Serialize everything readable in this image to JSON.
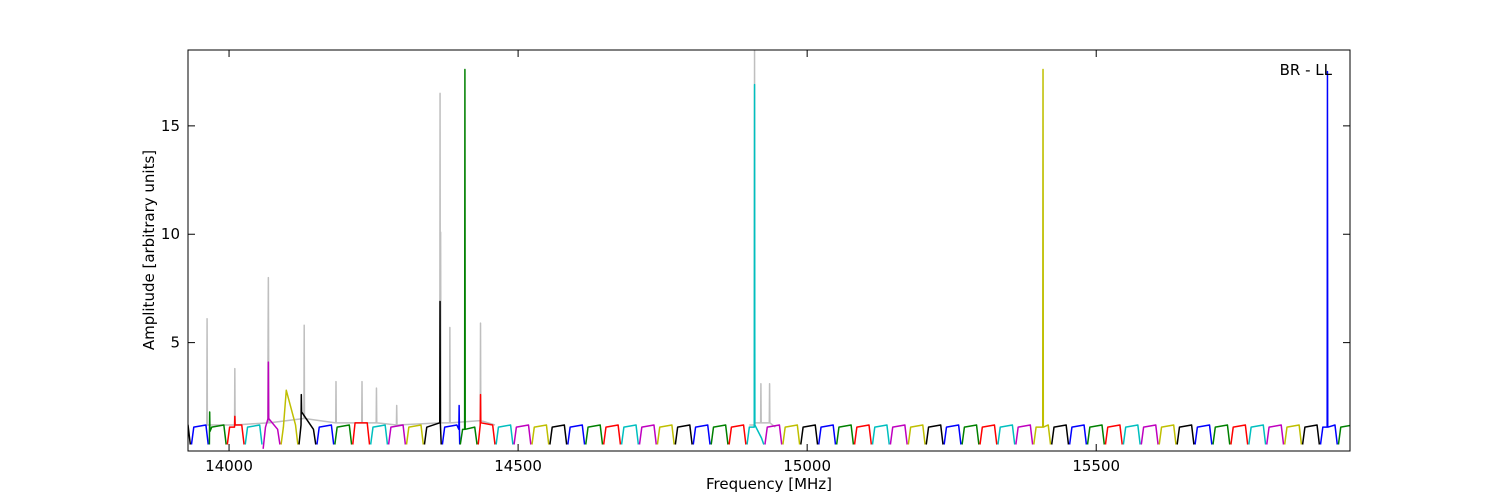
{
  "chart_data": {
    "type": "line",
    "xlabel": "Frequency [MHz]",
    "ylabel": "Amplitude [arbitrary units]",
    "annotation": "BR - LL",
    "xlim": [
      13929,
      15939
    ],
    "xticks": [
      14000,
      14500,
      15000,
      15500
    ],
    "ylim": [
      0,
      18.5
    ],
    "yticks": [
      5,
      10,
      15
    ],
    "series": [
      {
        "color": "#bfbfbf",
        "x": [
          13960,
          13961.5,
          13962,
          13962.5,
          14009.5,
          14010,
          14010.5,
          14067,
          14067.5,
          14068,
          14068.5,
          14069,
          14129.5,
          14130,
          14130.5,
          14184.5,
          14185,
          14185.5,
          14229.5,
          14230,
          14230.5,
          14254.5,
          14255,
          14255.5,
          14289.5,
          14290,
          14290.5,
          14364.5,
          14365,
          14365.5,
          14366,
          14366.5,
          14381.5,
          14382,
          14382.5,
          14434.5,
          14435,
          14435.5,
          14460,
          null,
          14900,
          14908.5,
          14909,
          14909.5,
          14919.5,
          14920,
          14920.5,
          14934.5,
          14935,
          14935.5,
          14945
        ],
        "values": [
          1.1,
          1.2,
          6.1,
          1.2,
          1.2,
          3.8,
          1.2,
          1.3,
          5.3,
          8.0,
          4.0,
          1.3,
          1.5,
          5.8,
          1.5,
          1.3,
          3.2,
          1.3,
          1.3,
          3.2,
          1.3,
          1.3,
          2.9,
          1.3,
          1.2,
          2.1,
          1.2,
          1.3,
          16.5,
          3.0,
          10.1,
          1.3,
          1.3,
          5.7,
          1.3,
          1.4,
          5.9,
          1.4,
          1.2,
          null,
          1.2,
          1.2,
          18.5,
          1.3,
          1.3,
          3.1,
          1.3,
          1.3,
          3.1,
          1.3,
          1.1
        ]
      },
      {
        "color": "#0000ff",
        "x": [
          13935,
          13939,
          13960,
          13964,
          null,
          14152,
          14156,
          14177,
          14181,
          null,
          14369,
          14373,
          14394,
          14397.5,
          14398,
          14398.5,
          14399,
          null,
          14586,
          14590,
          14611,
          14615,
          null,
          14803,
          14807,
          14828,
          14832,
          null,
          15020,
          15024,
          15045,
          15049,
          null,
          15237,
          15241,
          15262,
          15266,
          null,
          15454,
          15458,
          15479,
          15483,
          null,
          15671,
          15675,
          15696,
          15700,
          null,
          15888,
          15892,
          15899.5,
          15900,
          15900.5,
          15913,
          15917
        ],
        "values": [
          0.3,
          1.1,
          1.2,
          0.3,
          null,
          0.3,
          1.1,
          1.2,
          0.3,
          null,
          0.3,
          1.1,
          1.2,
          1.0,
          2.1,
          1.0,
          0.3,
          null,
          0.3,
          1.1,
          1.2,
          0.3,
          null,
          0.3,
          1.1,
          1.2,
          0.3,
          null,
          0.3,
          1.1,
          1.2,
          0.3,
          null,
          0.3,
          1.1,
          1.2,
          0.3,
          null,
          0.3,
          1.1,
          1.2,
          0.3,
          null,
          0.3,
          1.1,
          1.2,
          0.3,
          null,
          0.3,
          1.1,
          1.1,
          17.5,
          1.1,
          1.2,
          0.3
        ]
      },
      {
        "color": "#008000",
        "x": [
          13966,
          13966.5,
          13967,
          13970,
          13991,
          13995,
          null,
          14183,
          14187,
          14208,
          14212,
          null,
          14400,
          14404,
          14407.5,
          14408,
          14408.5,
          14425,
          14429,
          null,
          14617,
          14621,
          14642,
          14646,
          null,
          14834,
          14838,
          14859,
          14863,
          null,
          15051,
          15055,
          15076,
          15080,
          null,
          15268,
          15272,
          15293,
          15297,
          null,
          15485,
          15489,
          15510,
          15514,
          null,
          15702,
          15706,
          15727,
          15731,
          null,
          15919,
          15923,
          15944,
          15948
        ],
        "values": [
          0.3,
          1.8,
          0.9,
          1.1,
          1.2,
          0.3,
          null,
          0.3,
          1.1,
          1.2,
          0.3,
          null,
          0.3,
          1.0,
          1.0,
          17.6,
          1.0,
          1.1,
          0.3,
          null,
          0.3,
          1.1,
          1.2,
          0.3,
          null,
          0.3,
          1.1,
          1.2,
          0.3,
          null,
          0.3,
          1.1,
          1.2,
          0.3,
          null,
          0.3,
          1.1,
          1.2,
          0.3,
          null,
          0.3,
          1.1,
          1.2,
          0.3,
          null,
          0.3,
          1.1,
          1.2,
          0.3,
          null,
          0.3,
          1.1,
          1.2,
          0.3
        ]
      },
      {
        "color": "#ff0000",
        "x": [
          13997,
          14001,
          14009.5,
          14010,
          14010.5,
          14022,
          14026,
          null,
          14214,
          14218,
          14239,
          14243,
          null,
          14431,
          14434.5,
          14435,
          14435.5,
          14456,
          14460,
          null,
          14648,
          14652,
          14673,
          14677,
          null,
          14865,
          14869,
          14890,
          14894,
          null,
          15082,
          15086,
          15107,
          15111,
          null,
          15299,
          15303,
          15324,
          15328,
          null,
          15516,
          15520,
          15541,
          15545,
          null,
          15733,
          15737,
          15758,
          15762
        ],
        "values": [
          0.3,
          1.1,
          1.1,
          1.6,
          1.2,
          1.2,
          0.3,
          null,
          0.3,
          1.3,
          1.3,
          0.3,
          null,
          0.3,
          1.2,
          2.6,
          1.3,
          1.2,
          0.3,
          null,
          0.3,
          1.1,
          1.2,
          0.3,
          null,
          0.3,
          1.1,
          1.2,
          0.3,
          null,
          0.3,
          1.1,
          1.2,
          0.3,
          null,
          0.3,
          1.1,
          1.2,
          0.3,
          null,
          0.3,
          1.1,
          1.2,
          0.3,
          null,
          0.3,
          1.1,
          1.2,
          0.3
        ]
      },
      {
        "color": "#00bfbf",
        "x": [
          14028,
          14032,
          14053,
          14057,
          null,
          14245,
          14249,
          14270,
          14274,
          null,
          14462,
          14466,
          14487,
          14491,
          null,
          14679,
          14683,
          14704,
          14708,
          null,
          14896,
          14900,
          14908.5,
          14909,
          14909.5,
          14921,
          14925,
          null,
          15113,
          15117,
          15138,
          15142,
          null,
          15330,
          15334,
          15355,
          15359,
          null,
          15547,
          15551,
          15572,
          15576,
          null,
          15764,
          15768,
          15789,
          15793
        ],
        "values": [
          0.3,
          1.1,
          1.2,
          0.3,
          null,
          0.3,
          1.1,
          1.2,
          0.3,
          null,
          0.3,
          1.1,
          1.2,
          0.3,
          null,
          0.3,
          1.1,
          1.2,
          0.3,
          null,
          0.3,
          1.1,
          1.1,
          16.9,
          1.2,
          0.6,
          0.3,
          null,
          0.3,
          1.1,
          1.2,
          0.3,
          null,
          0.3,
          1.1,
          1.2,
          0.3,
          null,
          0.3,
          1.1,
          1.2,
          0.3,
          null,
          0.3,
          1.1,
          1.2,
          0.3
        ]
      },
      {
        "color": "#bf00bf",
        "x": [
          14059,
          14063,
          14067.5,
          14068,
          14068.5,
          14084,
          14088,
          null,
          14276,
          14280,
          14301,
          14305,
          null,
          14493,
          14497,
          14518,
          14522,
          null,
          14710,
          14714,
          14735,
          14739,
          null,
          14927,
          14931,
          14952,
          14956,
          null,
          15144,
          15148,
          15169,
          15173,
          null,
          15361,
          15365,
          15386,
          15390,
          null,
          15578,
          15582,
          15603,
          15607,
          null,
          15795,
          15799,
          15820,
          15824
        ],
        "values": [
          0.1,
          1.1,
          1.5,
          4.1,
          1.5,
          1.0,
          0.3,
          null,
          0.3,
          1.1,
          1.2,
          0.3,
          null,
          0.3,
          1.1,
          1.2,
          0.3,
          null,
          0.3,
          1.1,
          1.2,
          0.3,
          null,
          0.3,
          1.1,
          1.2,
          0.3,
          null,
          0.3,
          1.1,
          1.2,
          0.3,
          null,
          0.3,
          1.1,
          1.2,
          0.3,
          null,
          0.3,
          1.1,
          1.2,
          0.3,
          null,
          0.3,
          1.1,
          1.2,
          0.3
        ]
      },
      {
        "color": "#bfbf00",
        "x": [
          14090,
          14094,
          14099,
          14115,
          14119,
          null,
          14307,
          14311,
          14332,
          14336,
          null,
          14524,
          14528,
          14549,
          14553,
          null,
          14741,
          14745,
          14766,
          14770,
          null,
          14958,
          14962,
          14983,
          14987,
          null,
          15175,
          15179,
          15200,
          15204,
          null,
          15392,
          15396,
          15407.5,
          15408,
          15408.5,
          15417,
          15421,
          null,
          15609,
          15613,
          15634,
          15638,
          null,
          15826,
          15830,
          15851,
          15855
        ],
        "values": [
          0.3,
          1.1,
          2.8,
          1.2,
          0.3,
          null,
          0.3,
          1.1,
          1.2,
          0.3,
          null,
          0.3,
          1.1,
          1.2,
          0.3,
          null,
          0.3,
          1.1,
          1.2,
          0.3,
          null,
          0.3,
          1.1,
          1.2,
          0.3,
          null,
          0.3,
          1.1,
          1.2,
          0.3,
          null,
          0.3,
          1.1,
          1.1,
          17.6,
          1.1,
          1.2,
          0.3,
          null,
          0.3,
          1.1,
          1.2,
          0.3,
          null,
          0.3,
          1.1,
          1.2,
          0.3
        ]
      },
      {
        "color": "#000000",
        "x": [
          13904,
          13908,
          13929,
          13933,
          null,
          14121,
          14124.5,
          14125,
          14125.5,
          14146,
          14150,
          null,
          14338,
          14342,
          14364.5,
          14365,
          14365.5,
          14367,
          null,
          14555,
          14559,
          14580,
          14584,
          null,
          14772,
          14776,
          14797,
          14801,
          null,
          14989,
          14993,
          15014,
          15018,
          null,
          15206,
          15210,
          15231,
          15235,
          null,
          15423,
          15427,
          15448,
          15452,
          null,
          15640,
          15644,
          15665,
          15669,
          null,
          15857,
          15861,
          15882,
          15886
        ],
        "values": [
          0.3,
          1.1,
          1.2,
          0.3,
          null,
          0.3,
          1.2,
          2.6,
          1.8,
          1.0,
          0.3,
          null,
          0.3,
          1.1,
          1.3,
          6.9,
          1.3,
          0.3,
          null,
          0.3,
          1.1,
          1.2,
          0.3,
          null,
          0.3,
          1.1,
          1.2,
          0.3,
          null,
          0.3,
          1.1,
          1.2,
          0.3,
          null,
          0.3,
          1.1,
          1.2,
          0.3,
          null,
          0.3,
          1.1,
          1.2,
          0.3,
          null,
          0.3,
          1.1,
          1.2,
          0.3,
          null,
          0.3,
          1.1,
          1.2,
          0.3
        ]
      }
    ]
  }
}
